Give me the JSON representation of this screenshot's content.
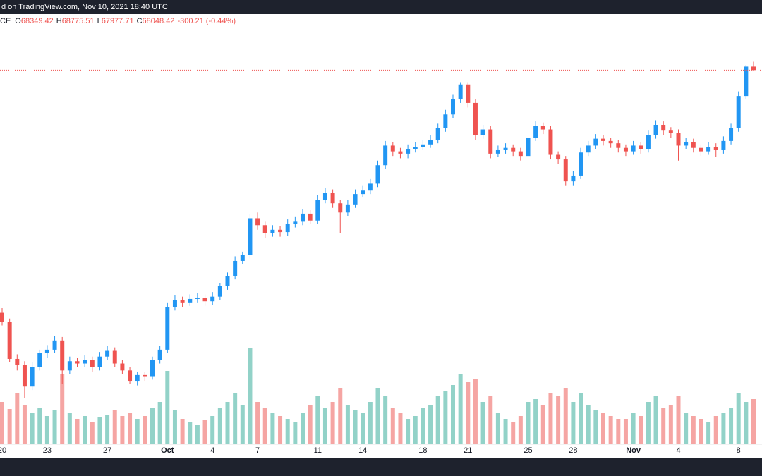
{
  "chart_data": {
    "type": "candlestick",
    "header": "d on TradingView.com, Nov 10, 2021 18:40 UTC",
    "legend": {
      "symbol": "CE",
      "items": [
        {
          "label": "O",
          "value": "68349.42"
        },
        {
          "label": "H",
          "value": "68775.51"
        },
        {
          "label": "L",
          "value": "67977.71"
        },
        {
          "label": "C",
          "value": "68048.42"
        },
        {
          "label": "",
          "value": "-300.21 (-0.44%)"
        }
      ]
    },
    "categories": [
      "20",
      null,
      null,
      null,
      null,
      null,
      "23",
      null,
      null,
      null,
      null,
      null,
      null,
      null,
      "27",
      null,
      null,
      null,
      null,
      null,
      null,
      null,
      "Oct",
      null,
      null,
      null,
      null,
      null,
      "4",
      null,
      null,
      null,
      null,
      null,
      "7",
      null,
      null,
      null,
      null,
      null,
      null,
      null,
      "11",
      null,
      null,
      null,
      null,
      null,
      "14",
      null,
      null,
      null,
      null,
      null,
      null,
      null,
      "18",
      null,
      null,
      null,
      null,
      null,
      "21",
      null,
      null,
      null,
      null,
      null,
      null,
      null,
      "25",
      null,
      null,
      null,
      null,
      null,
      "28",
      null,
      null,
      null,
      null,
      null,
      null,
      null,
      "Nov",
      null,
      null,
      null,
      null,
      null,
      "4",
      null,
      null,
      null,
      null,
      null,
      null,
      null,
      "8",
      null,
      null
    ],
    "open": [
      47000,
      46200,
      43000,
      42500,
      40600,
      42300,
      43500,
      43800,
      44600,
      42000,
      42800,
      42600,
      42900,
      42300,
      43200,
      43700,
      42600,
      42000,
      41100,
      41600,
      41500,
      42900,
      43800,
      47500,
      48100,
      47900,
      48200,
      48300,
      48000,
      48400,
      49300,
      50200,
      51500,
      52000,
      55200,
      54600,
      53900,
      54200,
      54000,
      54700,
      54900,
      55600,
      55000,
      56800,
      57400,
      56500,
      55700,
      56400,
      57300,
      57600,
      58200,
      59800,
      61500,
      61000,
      60800,
      61200,
      61400,
      61600,
      62000,
      63000,
      64200,
      65500,
      66800,
      65200,
      62400,
      62900,
      60800,
      61100,
      61300,
      61000,
      60600,
      62200,
      63200,
      62900,
      60700,
      60300,
      58400,
      58900,
      60900,
      61500,
      62100,
      61900,
      61700,
      61300,
      61000,
      61500,
      61200,
      62400,
      63300,
      62800,
      62600,
      61500,
      61800,
      61300,
      61000,
      61400,
      61100,
      61900,
      63000,
      65800,
      68349.42
    ],
    "high": [
      47400,
      46500,
      43400,
      42800,
      42700,
      43800,
      44200,
      45000,
      44900,
      43200,
      43100,
      43300,
      43200,
      43600,
      44100,
      44000,
      42900,
      42300,
      41900,
      41900,
      43200,
      44100,
      47900,
      48500,
      48400,
      48600,
      48700,
      48600,
      48800,
      49600,
      50500,
      51900,
      52300,
      55600,
      55700,
      54900,
      54600,
      54500,
      55100,
      55300,
      56000,
      55900,
      57200,
      57800,
      57700,
      56800,
      56800,
      57700,
      58000,
      58600,
      60200,
      61900,
      61800,
      61300,
      61600,
      61800,
      62000,
      62400,
      63400,
      64600,
      65900,
      67000,
      67000,
      65500,
      63300,
      63200,
      61500,
      61700,
      61600,
      61300,
      62600,
      63600,
      63500,
      63200,
      61000,
      60600,
      59300,
      61300,
      61900,
      62500,
      62400,
      62200,
      62000,
      61600,
      61900,
      61800,
      62800,
      63700,
      63600,
      63100,
      62900,
      62200,
      62100,
      61600,
      61800,
      61700,
      62300,
      63400,
      66200,
      68500,
      68775.51
    ],
    "low": [
      45900,
      42700,
      42000,
      39600,
      40300,
      42000,
      43100,
      43500,
      40800,
      41700,
      42300,
      42300,
      41900,
      42000,
      42900,
      42300,
      41700,
      40800,
      40700,
      41100,
      41200,
      42600,
      43500,
      47200,
      47500,
      47600,
      47900,
      47600,
      47700,
      48100,
      49000,
      49900,
      51200,
      51700,
      54200,
      53500,
      53600,
      53600,
      53700,
      54400,
      54600,
      54700,
      54700,
      56500,
      56100,
      53900,
      55400,
      56100,
      57000,
      57300,
      57900,
      59500,
      60600,
      60400,
      60400,
      60900,
      61100,
      61300,
      61700,
      62700,
      63900,
      65200,
      64800,
      62000,
      62100,
      60400,
      60500,
      60800,
      60600,
      60200,
      60300,
      61900,
      62500,
      60300,
      59900,
      58000,
      58000,
      58600,
      60600,
      61200,
      61500,
      61300,
      60900,
      60600,
      60700,
      60800,
      60900,
      62100,
      62400,
      62200,
      60200,
      61200,
      60900,
      60600,
      60700,
      60500,
      60800,
      61600,
      62700,
      65500,
      67977.71
    ],
    "close": [
      46200,
      43000,
      42500,
      40600,
      42300,
      43500,
      43800,
      44600,
      42000,
      42800,
      42600,
      42900,
      42300,
      43200,
      43700,
      42600,
      42000,
      41100,
      41600,
      41500,
      42900,
      43800,
      47500,
      48100,
      47900,
      48200,
      48300,
      48000,
      48400,
      49300,
      50200,
      51500,
      52000,
      55200,
      54600,
      53900,
      54200,
      54000,
      54700,
      54900,
      55600,
      55000,
      56800,
      57400,
      56500,
      55700,
      56400,
      57300,
      57600,
      58200,
      59800,
      61500,
      61000,
      60800,
      61200,
      61400,
      61600,
      62000,
      63000,
      64200,
      65500,
      66800,
      65200,
      62400,
      62900,
      60800,
      61100,
      61300,
      61000,
      60600,
      62200,
      63200,
      62900,
      60700,
      60300,
      58400,
      58900,
      60900,
      61500,
      62100,
      61900,
      61700,
      61300,
      61000,
      61500,
      61200,
      62400,
      63300,
      62800,
      62600,
      61500,
      61800,
      61300,
      61000,
      61400,
      61100,
      61900,
      63000,
      65800,
      68350,
      68048.42
    ],
    "volume": [
      30,
      25,
      36,
      28,
      22,
      26,
      20,
      24,
      50,
      22,
      18,
      20,
      16,
      19,
      21,
      24,
      20,
      22,
      18,
      20,
      26,
      30,
      52,
      24,
      18,
      16,
      14,
      17,
      20,
      26,
      30,
      36,
      28,
      68,
      30,
      26,
      22,
      20,
      18,
      16,
      22,
      28,
      34,
      26,
      30,
      40,
      28,
      24,
      22,
      30,
      40,
      34,
      26,
      22,
      18,
      20,
      26,
      28,
      34,
      38,
      42,
      50,
      44,
      46,
      30,
      34,
      22,
      18,
      16,
      20,
      30,
      32,
      28,
      36,
      34,
      40,
      30,
      36,
      28,
      24,
      22,
      20,
      18,
      18,
      22,
      20,
      30,
      34,
      26,
      28,
      34,
      22,
      20,
      18,
      16,
      20,
      22,
      26,
      36,
      30,
      32
    ],
    "ylim": [
      35600,
      72900
    ],
    "volume_lim": [
      0,
      100
    ],
    "up_color": "#2196f3",
    "down_color": "#ef5350",
    "volume_up_color": "#92d2c8",
    "volume_down_color": "#f5a5a3",
    "last_price_line": true
  }
}
